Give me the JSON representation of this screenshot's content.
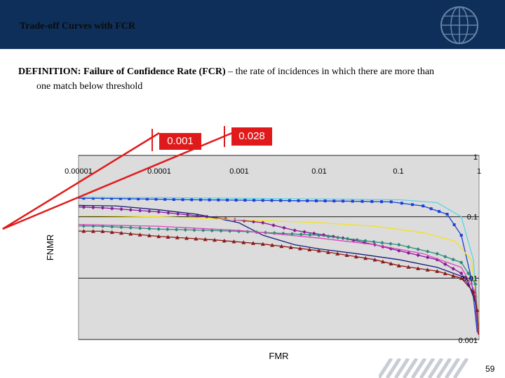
{
  "header": {
    "title": "Trade-off Curves with FCR"
  },
  "definition": {
    "label": "DEFINITION: Failure of Confidence Rate (FCR)",
    "text_line1": " – the rate of incidences in which there are more than",
    "text_line2": "one match below threshold"
  },
  "callouts": [
    {
      "label": "0.001",
      "fcr": 0.001
    },
    {
      "label": "0.028",
      "fcr": 0.028
    }
  ],
  "page": {
    "number": "59"
  },
  "colors": {
    "header": "#0e2f5a",
    "callout": "#e01a1a",
    "plot_bg": "#dcdcdc"
  },
  "chart_data": {
    "type": "line",
    "xlabel": "FMR",
    "ylabel": "FNMR",
    "x_scale": "log",
    "y_scale": "log",
    "xlim": [
      1e-05,
      1
    ],
    "ylim": [
      0.001,
      1
    ],
    "x_tick_labels": [
      "0.00001",
      "0.0001",
      "0.001",
      "0.01",
      "0.1",
      "1"
    ],
    "x_tick_values": [
      1e-05,
      0.0001,
      0.001,
      0.01,
      0.1,
      1
    ],
    "y_tick_labels": [
      "1",
      "0.1",
      "0.01",
      "0.001"
    ],
    "y_tick_values": [
      1,
      0.1,
      0.01,
      0.001
    ],
    "grid": true,
    "series": [
      {
        "color": "#1a3fd6",
        "marker": "square",
        "points": [
          [
            1e-06,
            0.2
          ],
          [
            2e-05,
            0.2
          ],
          [
            0.0002,
            0.19
          ],
          [
            0.002,
            0.185
          ],
          [
            0.02,
            0.18
          ],
          [
            0.08,
            0.175
          ],
          [
            0.2,
            0.15
          ],
          [
            0.4,
            0.11
          ],
          [
            0.6,
            0.05
          ],
          [
            0.8,
            0.01
          ],
          [
            0.95,
            0.0013
          ]
        ]
      },
      {
        "color": "#5bd4e6",
        "marker": "none",
        "points": [
          [
            1e-06,
            0.21
          ],
          [
            0.0001,
            0.205
          ],
          [
            0.001,
            0.2
          ],
          [
            0.01,
            0.195
          ],
          [
            0.1,
            0.19
          ],
          [
            0.3,
            0.17
          ],
          [
            0.6,
            0.1
          ],
          [
            0.85,
            0.02
          ],
          [
            0.97,
            0.002
          ]
        ]
      },
      {
        "color": "#8a1a9a",
        "marker": "diamond",
        "points": [
          [
            1e-06,
            0.16
          ],
          [
            2e-05,
            0.14
          ],
          [
            0.0001,
            0.12
          ],
          [
            0.0004,
            0.1
          ],
          [
            0.002,
            0.08
          ],
          [
            0.005,
            0.06
          ],
          [
            0.02,
            0.045
          ],
          [
            0.05,
            0.035
          ],
          [
            0.1,
            0.028
          ],
          [
            0.3,
            0.02
          ],
          [
            0.6,
            0.012
          ],
          [
            0.9,
            0.005
          ],
          [
            0.98,
            0.0015
          ]
        ]
      },
      {
        "color": "#1a1a7a",
        "marker": "none",
        "points": [
          [
            1e-06,
            0.16
          ],
          [
            3e-05,
            0.15
          ],
          [
            0.0001,
            0.13
          ],
          [
            0.0003,
            0.11
          ],
          [
            0.001,
            0.08
          ],
          [
            0.002,
            0.05
          ],
          [
            0.005,
            0.035
          ],
          [
            0.01,
            0.03
          ],
          [
            0.03,
            0.025
          ],
          [
            0.1,
            0.02
          ],
          [
            0.3,
            0.015
          ],
          [
            0.7,
            0.01
          ],
          [
            0.9,
            0.004
          ],
          [
            0.98,
            0.0012
          ]
        ]
      },
      {
        "color": "#f5e21a",
        "marker": "none",
        "points": [
          [
            1e-06,
            0.11
          ],
          [
            0.0001,
            0.1
          ],
          [
            0.001,
            0.09
          ],
          [
            0.01,
            0.08
          ],
          [
            0.05,
            0.07
          ],
          [
            0.2,
            0.055
          ],
          [
            0.5,
            0.04
          ],
          [
            0.8,
            0.02
          ],
          [
            0.95,
            0.004
          ],
          [
            0.99,
            0.0012
          ]
        ]
      },
      {
        "color": "#2e8b7a",
        "marker": "diamond",
        "points": [
          [
            1e-06,
            0.075
          ],
          [
            2e-05,
            0.07
          ],
          [
            0.0001,
            0.063
          ],
          [
            0.001,
            0.058
          ],
          [
            0.01,
            0.05
          ],
          [
            0.03,
            0.042
          ],
          [
            0.1,
            0.035
          ],
          [
            0.3,
            0.025
          ],
          [
            0.6,
            0.018
          ],
          [
            0.9,
            0.008
          ],
          [
            0.98,
            0.0015
          ]
        ]
      },
      {
        "color": "#e040c0",
        "marker": "none",
        "points": [
          [
            1e-06,
            0.08
          ],
          [
            0.0001,
            0.07
          ],
          [
            0.001,
            0.06
          ],
          [
            0.01,
            0.045
          ],
          [
            0.05,
            0.035
          ],
          [
            0.2,
            0.025
          ],
          [
            0.6,
            0.015
          ],
          [
            0.9,
            0.006
          ],
          [
            0.98,
            0.0012
          ]
        ]
      },
      {
        "color": "#8b1a1a",
        "marker": "triangle",
        "points": [
          [
            1e-06,
            0.06
          ],
          [
            2e-05,
            0.058
          ],
          [
            0.0001,
            0.048
          ],
          [
            0.0005,
            0.042
          ],
          [
            0.002,
            0.036
          ],
          [
            0.01,
            0.028
          ],
          [
            0.05,
            0.02
          ],
          [
            0.1,
            0.016
          ],
          [
            0.3,
            0.013
          ],
          [
            0.6,
            0.01
          ],
          [
            0.85,
            0.006
          ],
          [
            0.95,
            0.003
          ],
          [
            0.99,
            0.0012
          ]
        ]
      }
    ],
    "annotation_points": [
      {
        "label": "0.001",
        "fmr": 1e-06,
        "fnmr": 0.06
      },
      {
        "label": "0.028",
        "fmr": 1e-06,
        "fnmr": 0.06
      }
    ]
  }
}
